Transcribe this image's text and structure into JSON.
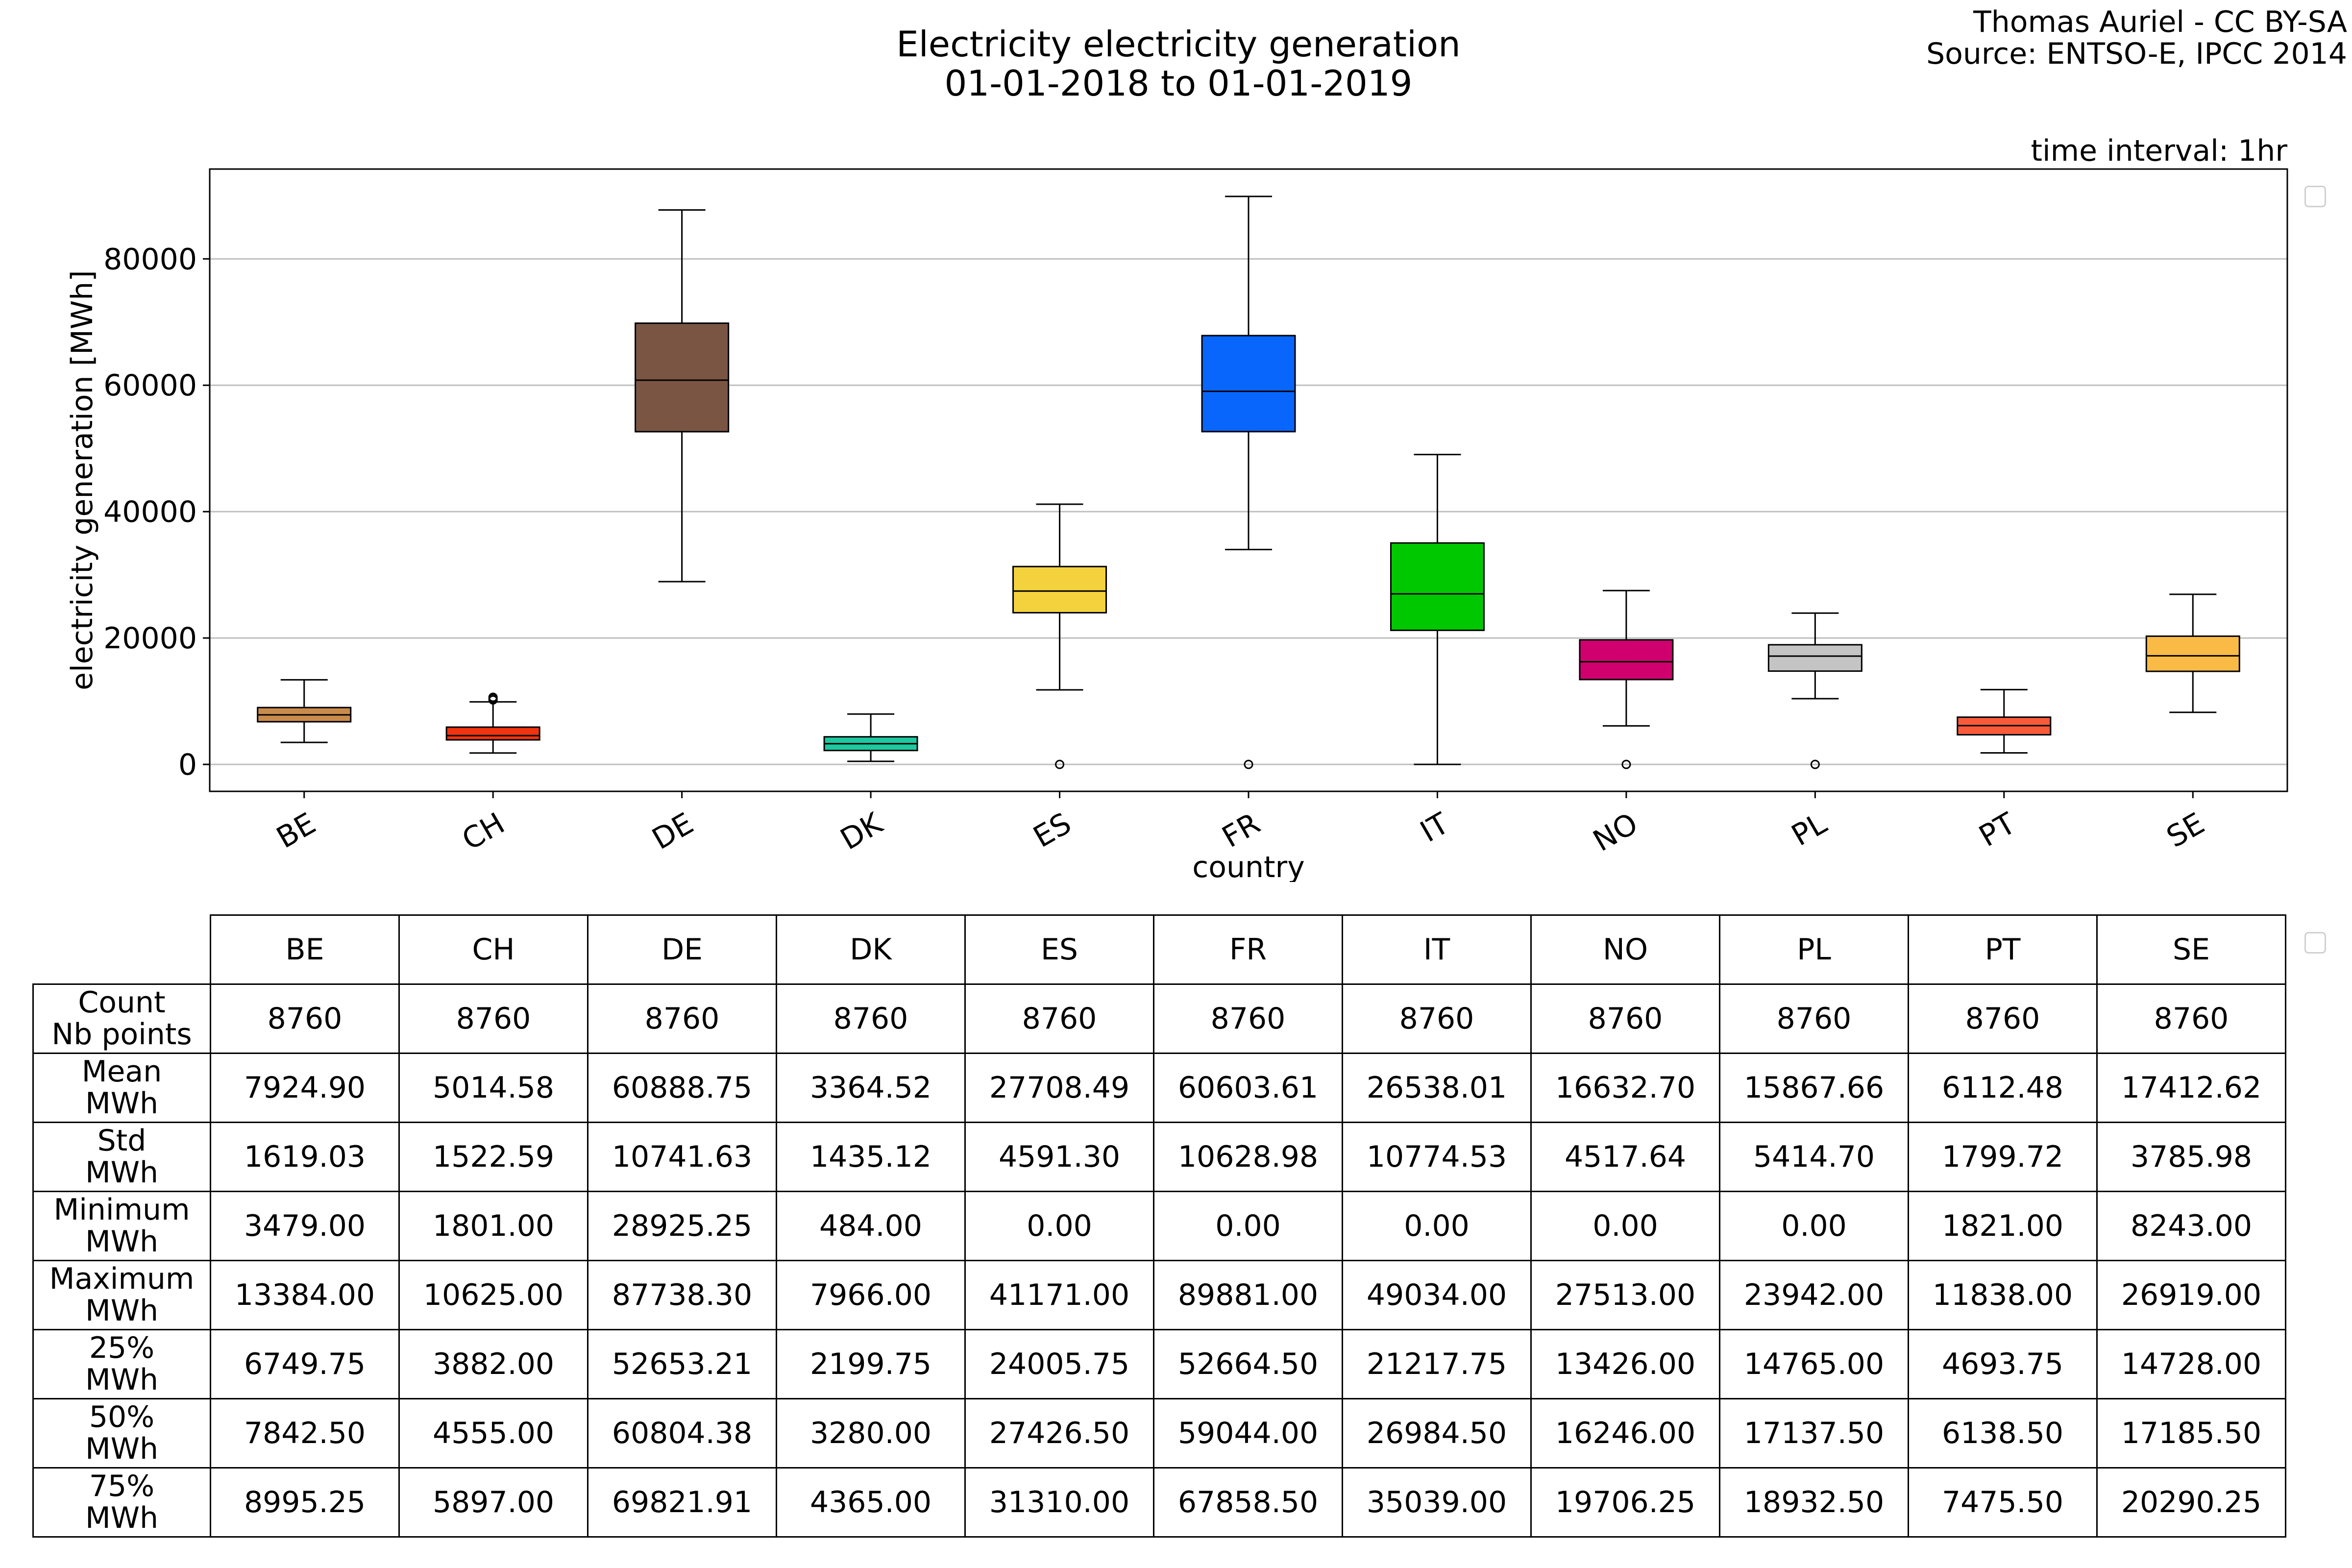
{
  "header": {
    "title_line1": "Electricity electricity generation",
    "title_line2": "01-01-2018 to 01-01-2019",
    "credit_line1": "Thomas Auriel - CC BY-SA",
    "credit_line2": "Source: ENTSO-E, IPCC 2014",
    "interval": "time interval: 1hr"
  },
  "chart_data": {
    "type": "box",
    "xlabel": "country",
    "ylabel": "electricity generation [MWh]",
    "ylim": [
      -4500,
      94000
    ],
    "yticks": [
      0,
      20000,
      40000,
      60000,
      80000
    ],
    "grid": "horizontal",
    "categories": [
      "BE",
      "CH",
      "DE",
      "DK",
      "ES",
      "FR",
      "IT",
      "NO",
      "PL",
      "PT",
      "SE"
    ],
    "boxes": [
      {
        "name": "BE",
        "color": "#c98b4c",
        "whislo": 3479.0,
        "q1": 6749.75,
        "med": 7842.5,
        "q3": 8995.25,
        "whishi": 13384.0,
        "fliers": []
      },
      {
        "name": "CH",
        "color": "#f2330f",
        "whislo": 1801.0,
        "q1": 3882.0,
        "med": 4555.0,
        "q3": 5897.0,
        "whishi": 9900,
        "fliers": [
          10200,
          10450,
          10625
        ]
      },
      {
        "name": "DE",
        "color": "#7a5543",
        "whislo": 28925.25,
        "q1": 52653.21,
        "med": 60804.38,
        "q3": 69821.91,
        "whishi": 87738.3,
        "fliers": []
      },
      {
        "name": "DK",
        "color": "#1ec99f",
        "whislo": 484.0,
        "q1": 2199.75,
        "med": 3280.0,
        "q3": 4365.0,
        "whishi": 7966.0,
        "fliers": []
      },
      {
        "name": "ES",
        "color": "#f3d23e",
        "whislo": 11800,
        "q1": 24005.75,
        "med": 27426.5,
        "q3": 31310.0,
        "whishi": 41171.0,
        "fliers": [
          0
        ]
      },
      {
        "name": "FR",
        "color": "#0866fd",
        "whislo": 34000,
        "q1": 52664.5,
        "med": 59044.0,
        "q3": 67858.5,
        "whishi": 89881.0,
        "fliers": [
          0
        ]
      },
      {
        "name": "IT",
        "color": "#00c800",
        "whislo": 0.0,
        "q1": 21217.75,
        "med": 26984.5,
        "q3": 35039.0,
        "whishi": 49034.0,
        "fliers": []
      },
      {
        "name": "NO",
        "color": "#d0006f",
        "whislo": 6100,
        "q1": 13426.0,
        "med": 16246.0,
        "q3": 19706.25,
        "whishi": 27513.0,
        "fliers": [
          0
        ]
      },
      {
        "name": "PL",
        "color": "#c4c4c4",
        "whislo": 10400,
        "q1": 14765.0,
        "med": 17137.5,
        "q3": 18932.5,
        "whishi": 23942.0,
        "fliers": [
          0
        ]
      },
      {
        "name": "PT",
        "color": "#f95a3a",
        "whislo": 1821.0,
        "q1": 4693.75,
        "med": 6138.5,
        "q3": 7475.5,
        "whishi": 11838.0,
        "fliers": []
      },
      {
        "name": "SE",
        "color": "#f9bb45",
        "whislo": 8243.0,
        "q1": 14728.0,
        "med": 17185.5,
        "q3": 20290.25,
        "whishi": 26919.0,
        "fliers": []
      }
    ]
  },
  "table": {
    "headers": [
      "BE",
      "CH",
      "DE",
      "DK",
      "ES",
      "FR",
      "IT",
      "NO",
      "PL",
      "PT",
      "SE"
    ],
    "rows": [
      {
        "label": "Count\nNb points",
        "values": [
          "8760",
          "8760",
          "8760",
          "8760",
          "8760",
          "8760",
          "8760",
          "8760",
          "8760",
          "8760",
          "8760"
        ]
      },
      {
        "label": "Mean\nMWh",
        "values": [
          "7924.90",
          "5014.58",
          "60888.75",
          "3364.52",
          "27708.49",
          "60603.61",
          "26538.01",
          "16632.70",
          "15867.66",
          "6112.48",
          "17412.62"
        ]
      },
      {
        "label": "Std\nMWh",
        "values": [
          "1619.03",
          "1522.59",
          "10741.63",
          "1435.12",
          "4591.30",
          "10628.98",
          "10774.53",
          "4517.64",
          "5414.70",
          "1799.72",
          "3785.98"
        ]
      },
      {
        "label": "Minimum\nMWh",
        "values": [
          "3479.00",
          "1801.00",
          "28925.25",
          "484.00",
          "0.00",
          "0.00",
          "0.00",
          "0.00",
          "0.00",
          "1821.00",
          "8243.00"
        ]
      },
      {
        "label": "Maximum\nMWh",
        "values": [
          "13384.00",
          "10625.00",
          "87738.30",
          "7966.00",
          "41171.00",
          "89881.00",
          "49034.00",
          "27513.00",
          "23942.00",
          "11838.00",
          "26919.00"
        ]
      },
      {
        "label": "25%\nMWh",
        "values": [
          "6749.75",
          "3882.00",
          "52653.21",
          "2199.75",
          "24005.75",
          "52664.50",
          "21217.75",
          "13426.00",
          "14765.00",
          "4693.75",
          "14728.00"
        ]
      },
      {
        "label": "50%\nMWh",
        "values": [
          "7842.50",
          "4555.00",
          "60804.38",
          "3280.00",
          "27426.50",
          "59044.00",
          "26984.50",
          "16246.00",
          "17137.50",
          "6138.50",
          "17185.50"
        ]
      },
      {
        "label": "75%\nMWh",
        "values": [
          "8995.25",
          "5897.00",
          "69821.91",
          "4365.00",
          "31310.00",
          "67858.50",
          "35039.00",
          "19706.25",
          "18932.50",
          "7475.50",
          "20290.25"
        ]
      }
    ]
  }
}
